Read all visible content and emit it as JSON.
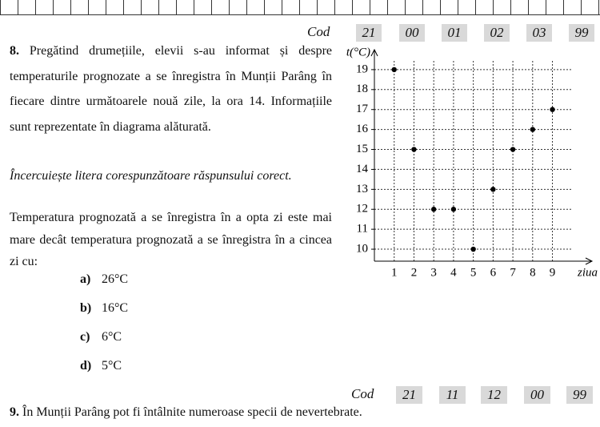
{
  "header": {
    "label": "Cod",
    "codes": [
      "21",
      "00",
      "01",
      "02",
      "03",
      "99"
    ]
  },
  "question8": {
    "number": "8.",
    "text": "Pregătind drumețiile, elevii s-au informat și despre temperaturile prognozate a se înregistra în Munții Parâng în fiecare dintre următoarele nouă zile, la ora 14. Informațiile sunt reprezentate în diagrama alăturată.",
    "instruction": "Încercuiește litera corespunzătoare răspunsului corect.",
    "question": "Temperatura prognozată a se înregistra în a opta zi este mai mare decât temperatura prognozată a se înregistra în a cincea zi cu:"
  },
  "chart_data": {
    "type": "scatter",
    "y_label": "t(°C)",
    "x_label": "ziua",
    "x": [
      1,
      2,
      3,
      4,
      5,
      6,
      7,
      8,
      9
    ],
    "values": [
      19,
      15,
      12,
      12,
      10,
      13,
      15,
      16,
      17
    ],
    "color": "#000000",
    "xlim": [
      0,
      11
    ],
    "ylim": [
      9.4,
      20
    ],
    "xticks": [
      1,
      2,
      3,
      4,
      5,
      6,
      7,
      8,
      9
    ],
    "yticks": [
      10,
      11,
      12,
      13,
      14,
      15,
      16,
      17,
      18,
      19
    ],
    "grid": true
  },
  "options": [
    {
      "letter": "a)",
      "text": "26°C"
    },
    {
      "letter": "b)",
      "text": "16°C"
    },
    {
      "letter": "c)",
      "text": "6°C"
    },
    {
      "letter": "d)",
      "text": "5°C"
    }
  ],
  "footer": {
    "label": "Cod",
    "codes": [
      "21",
      "11",
      "12",
      "00",
      "99"
    ]
  },
  "question9": {
    "number": "9.",
    "text": "În Munții Parâng pot fi întâlnite numeroase specii de nevertebrate."
  }
}
